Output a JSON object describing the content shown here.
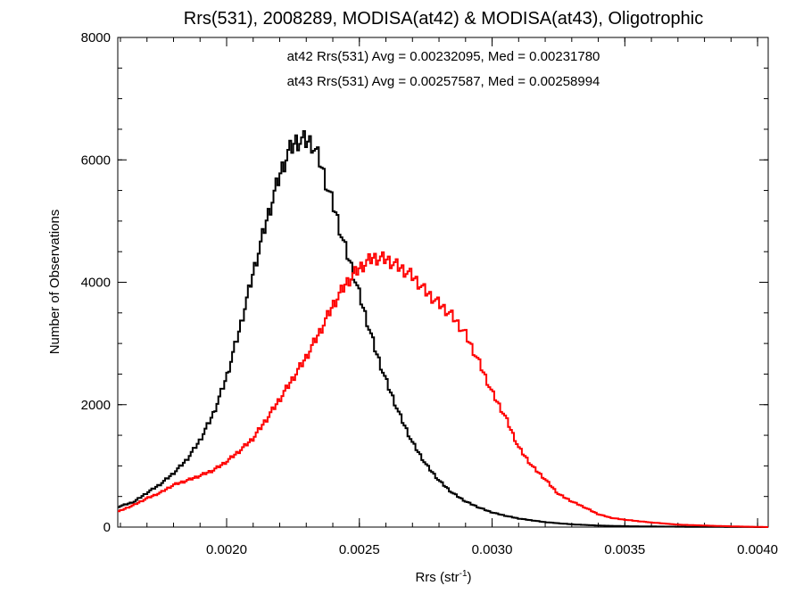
{
  "chart_data": {
    "type": "line",
    "title": "Rrs(531), 2008289, MODISA(at42) & MODISA(at43), Oligotrophic",
    "xlabel": {
      "base": "Rrs (str",
      "sup": "-1",
      "close": ")"
    },
    "ylabel": "Number of Observations",
    "xlim": [
      0.00159,
      0.00404
    ],
    "ylim": [
      0,
      8000
    ],
    "xticks": [
      {
        "value": 0.002,
        "label": "0.0020"
      },
      {
        "value": 0.0025,
        "label": "0.0025"
      },
      {
        "value": 0.003,
        "label": "0.0030"
      },
      {
        "value": 0.0035,
        "label": "0.0035"
      },
      {
        "value": 0.004,
        "label": "0.0040"
      }
    ],
    "yticks": [
      {
        "value": 0,
        "label": "0"
      },
      {
        "value": 2000,
        "label": "2000"
      },
      {
        "value": 4000,
        "label": "4000"
      },
      {
        "value": 6000,
        "label": "6000"
      },
      {
        "value": 8000,
        "label": "8000"
      }
    ],
    "annotations": [
      {
        "text": "at42 Rrs(531) Avg = 0.00232095, Med = 0.00231780",
        "color": "#000000"
      },
      {
        "text": "at43 Rrs(531) Avg = 0.00257587, Med = 0.00258994",
        "color": "#ff0000"
      }
    ],
    "series": [
      {
        "color": "#000000",
        "x": [
          0.00159,
          0.00165,
          0.0017,
          0.00175,
          0.0018,
          0.00185,
          0.0019,
          0.00195,
          0.002,
          0.00205,
          0.0021,
          0.00215,
          0.0022,
          0.00223,
          0.00226,
          0.00229,
          0.00232,
          0.00235,
          0.00238,
          0.00241,
          0.00244,
          0.00247,
          0.0025,
          0.00253,
          0.00256,
          0.0026,
          0.00265,
          0.0027,
          0.00275,
          0.0028,
          0.00285,
          0.0029,
          0.00295,
          0.003,
          0.00305,
          0.0031,
          0.0032,
          0.0033,
          0.0034,
          0.0035,
          0.0036,
          0.0037,
          0.0038,
          0.0039,
          0.00404
        ],
        "y": [
          330,
          410,
          560,
          700,
          880,
          1100,
          1420,
          1850,
          2450,
          3250,
          4150,
          5000,
          5750,
          6100,
          6300,
          6320,
          6280,
          6000,
          5550,
          5150,
          4650,
          4250,
          3800,
          3350,
          2900,
          2400,
          1850,
          1380,
          1030,
          760,
          560,
          420,
          320,
          240,
          185,
          140,
          80,
          45,
          25,
          15,
          10,
          6,
          3,
          2,
          0
        ]
      },
      {
        "color": "#ff0000",
        "x": [
          0.00159,
          0.00165,
          0.0017,
          0.00175,
          0.0018,
          0.00185,
          0.0019,
          0.00195,
          0.002,
          0.00205,
          0.0021,
          0.00215,
          0.0022,
          0.00225,
          0.0023,
          0.00235,
          0.0024,
          0.00245,
          0.0025,
          0.00255,
          0.0026,
          0.00265,
          0.0027,
          0.00275,
          0.0028,
          0.00285,
          0.0029,
          0.00295,
          0.003,
          0.00305,
          0.0031,
          0.00315,
          0.0032,
          0.00325,
          0.0033,
          0.00335,
          0.0034,
          0.00345,
          0.0035,
          0.0036,
          0.0037,
          0.0038,
          0.0039,
          0.00404
        ],
        "y": [
          250,
          360,
          470,
          560,
          690,
          760,
          840,
          930,
          1070,
          1250,
          1450,
          1760,
          2090,
          2430,
          2780,
          3180,
          3620,
          3980,
          4230,
          4400,
          4380,
          4250,
          4100,
          3850,
          3650,
          3450,
          3150,
          2700,
          2200,
          1800,
          1300,
          1000,
          780,
          540,
          420,
          320,
          210,
          150,
          120,
          75,
          40,
          25,
          12,
          0
        ]
      }
    ]
  }
}
